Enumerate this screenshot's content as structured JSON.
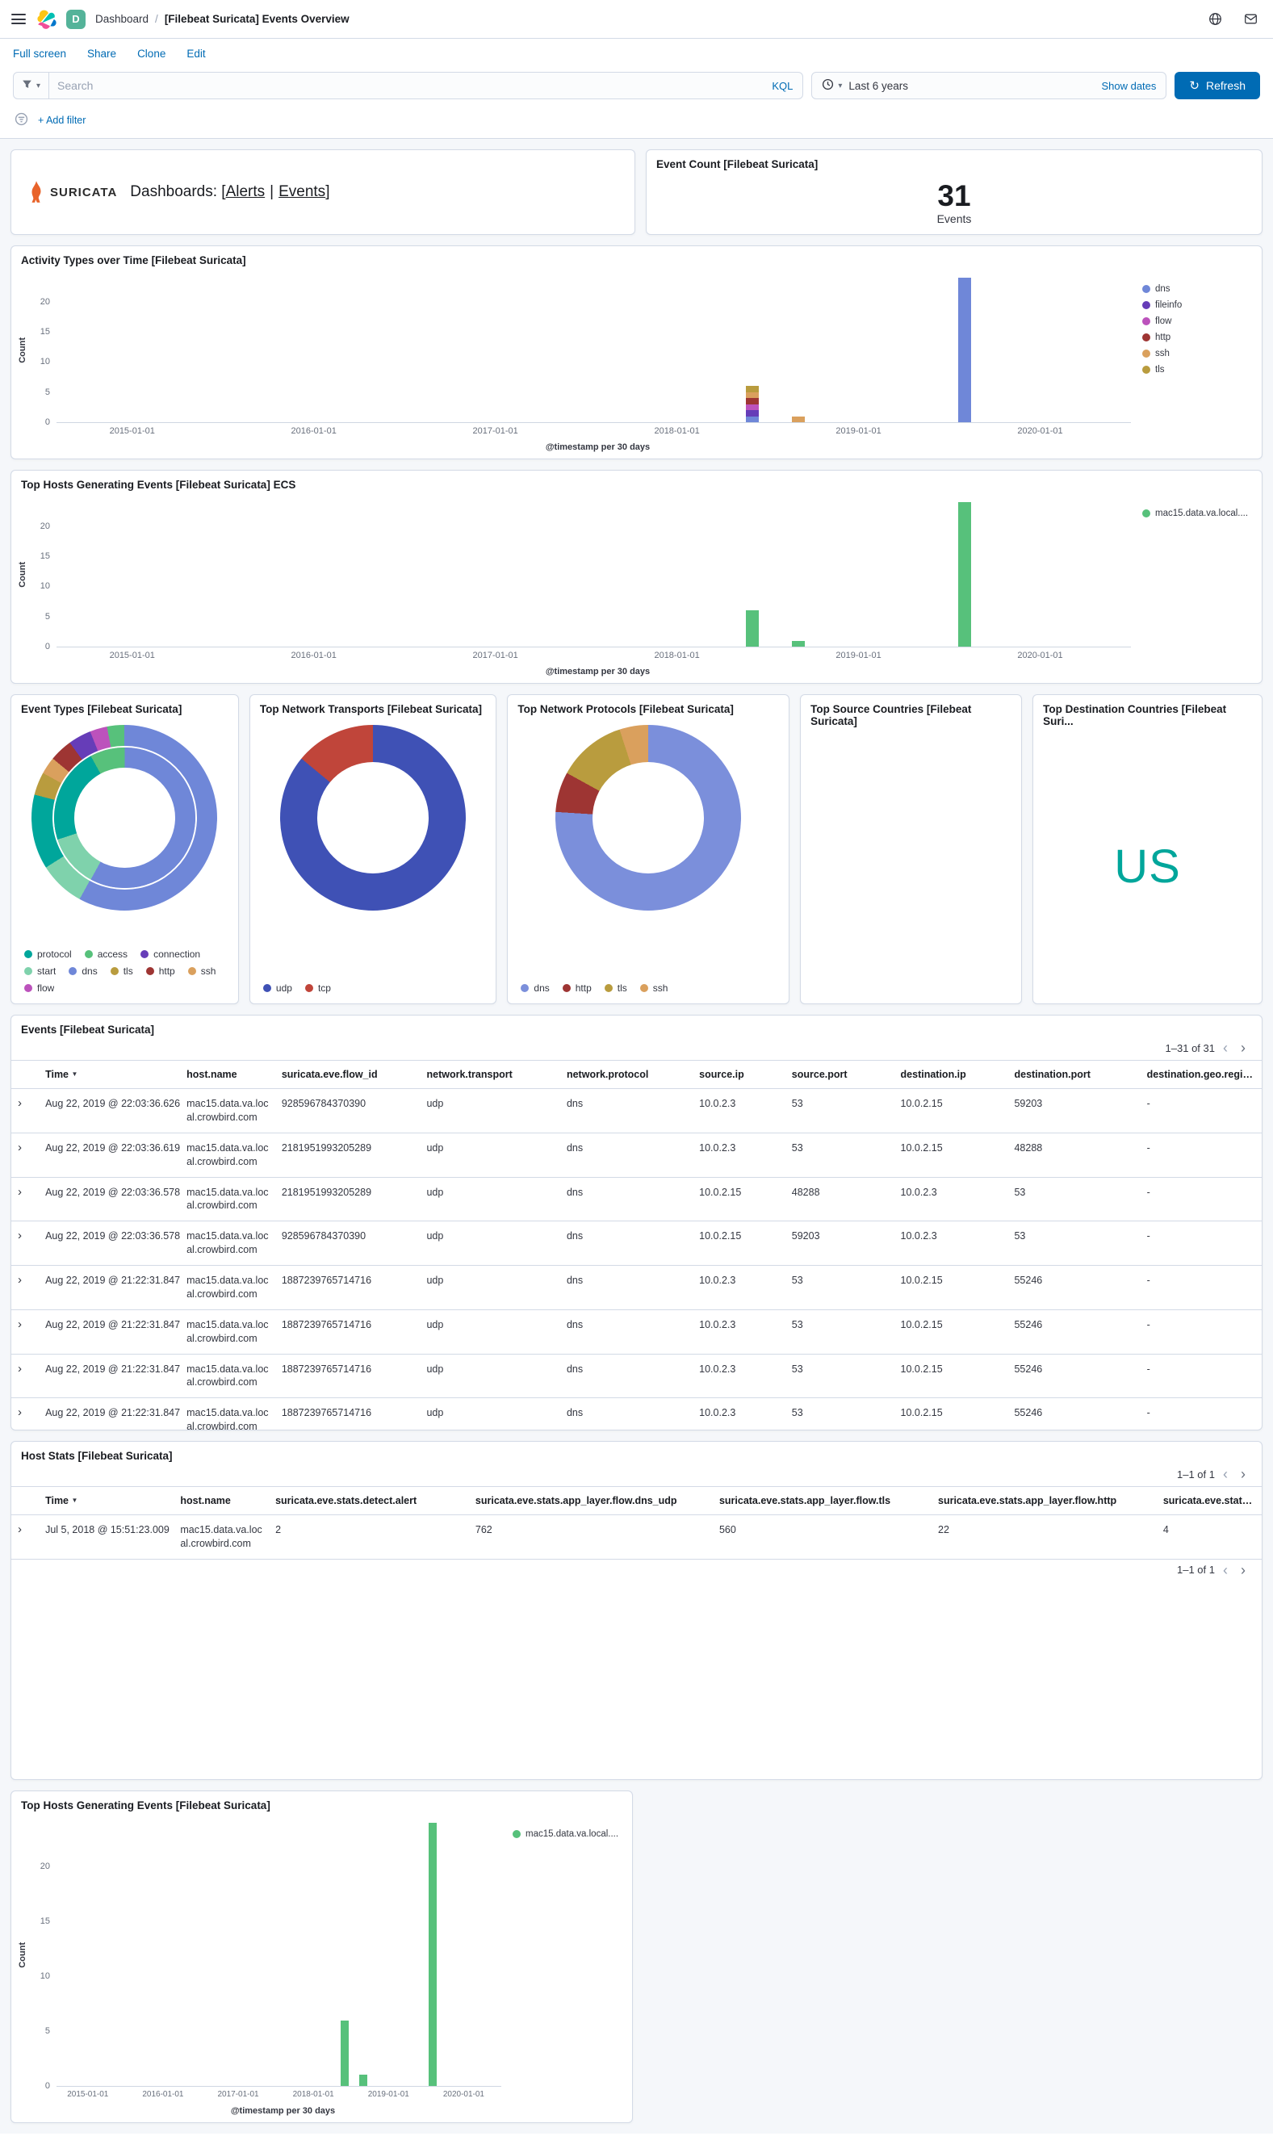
{
  "header": {
    "app_badge": "D",
    "breadcrumb_root": "Dashboard",
    "breadcrumb_sep": "/",
    "breadcrumb_page": "[Filebeat Suricata] Events Overview"
  },
  "toolbar": {
    "items": [
      "Full screen",
      "Share",
      "Clone",
      "Edit"
    ]
  },
  "querybar": {
    "search_placeholder": "Search",
    "kql": "KQL",
    "time_range": "Last 6 years",
    "show_dates": "Show dates",
    "refresh": "Refresh"
  },
  "filterbar": {
    "add_filter": "+ Add filter"
  },
  "panels": {
    "links": {
      "brand": "SURICATA",
      "prefix": "Dashboards: [",
      "link1": "Alerts",
      "divider": "|",
      "link2": "Events",
      "suffix": "]"
    },
    "event_count": {
      "title": "Event Count [Filebeat Suricata]",
      "value": "31",
      "label": "Events"
    },
    "source_countries": {
      "title": "Top Source Countries [Filebeat Suricata]"
    },
    "dest_countries": {
      "title": "Top Destination Countries [Filebeat Suri...",
      "tag": "US",
      "tag_color": "#00a69b"
    }
  },
  "charts": {
    "activity": {
      "type": "bar",
      "stacked": true,
      "title": "Activity Types over Time [Filebeat Suricata]",
      "xlabel": "@timestamp per 30 days",
      "ylabel": "Count",
      "x_domain": [
        "2014-08-01",
        "2020-07-01"
      ],
      "x_ticks": [
        "2015-01-01",
        "2016-01-01",
        "2017-01-01",
        "2018-01-01",
        "2019-01-01",
        "2020-01-01"
      ],
      "y_ticks": [
        0,
        5,
        10,
        15,
        20
      ],
      "ylim": [
        0,
        24
      ],
      "series": [
        {
          "name": "dns",
          "color": "#6f87d8",
          "points": [
            [
              "2018-06-01",
              1
            ],
            [
              "2019-08-01",
              24
            ]
          ]
        },
        {
          "name": "fileinfo",
          "color": "#663db8",
          "points": [
            [
              "2018-06-01",
              1
            ]
          ]
        },
        {
          "name": "flow",
          "color": "#bc52bc",
          "points": [
            [
              "2018-06-01",
              1
            ]
          ]
        },
        {
          "name": "http",
          "color": "#9e3533",
          "points": [
            [
              "2018-06-01",
              1
            ]
          ]
        },
        {
          "name": "ssh",
          "color": "#daa05d",
          "points": [
            [
              "2018-06-01",
              1
            ],
            [
              "2018-09-01",
              1
            ]
          ]
        },
        {
          "name": "tls",
          "color": "#b99c3e",
          "points": [
            [
              "2018-06-01",
              1
            ]
          ]
        }
      ]
    },
    "hosts_ecs": {
      "type": "bar",
      "title": "Top Hosts Generating Events [Filebeat Suricata] ECS",
      "xlabel": "@timestamp per 30 days",
      "ylabel": "Count",
      "x_domain": [
        "2014-08-01",
        "2020-07-01"
      ],
      "x_ticks": [
        "2015-01-01",
        "2016-01-01",
        "2017-01-01",
        "2018-01-01",
        "2019-01-01",
        "2020-01-01"
      ],
      "y_ticks": [
        0,
        5,
        10,
        15,
        20
      ],
      "ylim": [
        0,
        24
      ],
      "series": [
        {
          "name": "mac15.data.va.local....",
          "color": "#57c17b",
          "points": [
            [
              "2018-06-01",
              6
            ],
            [
              "2018-09-01",
              1
            ],
            [
              "2019-08-01",
              24
            ]
          ]
        }
      ]
    },
    "hosts_bottom": {
      "type": "bar",
      "title": "Top Hosts Generating Events [Filebeat Suricata]",
      "xlabel": "@timestamp per 30 days",
      "ylabel": "Count",
      "x_domain": [
        "2014-08-01",
        "2020-07-01"
      ],
      "x_ticks": [
        "2015-01-01",
        "2016-01-01",
        "2017-01-01",
        "2018-01-01",
        "2019-01-01",
        "2020-01-01"
      ],
      "y_ticks": [
        0,
        5,
        10,
        15,
        20
      ],
      "ylim": [
        0,
        24
      ],
      "series": [
        {
          "name": "mac15.data.va.local....",
          "color": "#57c17b",
          "points": [
            [
              "2018-06-01",
              6
            ],
            [
              "2018-09-01",
              1
            ],
            [
              "2019-08-01",
              24
            ]
          ]
        }
      ]
    },
    "event_types": {
      "type": "donut",
      "title": "Event Types [Filebeat Suricata]",
      "rings": [
        {
          "slices": [
            {
              "name": "dns",
              "color": "#6f87d8",
              "value": 58
            },
            {
              "name": "start",
              "color": "#7fd2ac",
              "value": 8
            },
            {
              "name": "protocol",
              "color": "#00a69b",
              "value": 13
            },
            {
              "name": "tls",
              "color": "#b99c3e",
              "value": 4
            },
            {
              "name": "ssh",
              "color": "#daa05d",
              "value": 3
            },
            {
              "name": "http",
              "color": "#9e3533",
              "value": 4
            },
            {
              "name": "connection",
              "color": "#663db8",
              "value": 4
            },
            {
              "name": "flow",
              "color": "#bc52bc",
              "value": 3
            },
            {
              "name": "access",
              "color": "#57c17b",
              "value": 3
            }
          ]
        },
        {
          "slices": [
            {
              "name": "dns",
              "color": "#6f87d8",
              "value": 58
            },
            {
              "name": "start",
              "color": "#7fd2ac",
              "value": 12
            },
            {
              "name": "protocol",
              "color": "#00a69b",
              "value": 22
            },
            {
              "name": "access",
              "color": "#57c17b",
              "value": 8
            }
          ]
        }
      ],
      "legend": [
        {
          "name": "protocol",
          "color": "#00a69b"
        },
        {
          "name": "access",
          "color": "#57c17b"
        },
        {
          "name": "connection",
          "color": "#663db8"
        },
        {
          "name": "start",
          "color": "#7fd2ac"
        },
        {
          "name": "dns",
          "color": "#6f87d8"
        },
        {
          "name": "tls",
          "color": "#b99c3e"
        },
        {
          "name": "http",
          "color": "#9e3533"
        },
        {
          "name": "ssh",
          "color": "#daa05d"
        },
        {
          "name": "flow",
          "color": "#bc52bc"
        }
      ]
    },
    "transports": {
      "type": "donut",
      "title": "Top Network Transports [Filebeat Suricata]",
      "slices": [
        {
          "name": "udp",
          "color": "#3f51b5",
          "value": 86
        },
        {
          "name": "tcp",
          "color": "#c0453a",
          "value": 14
        }
      ],
      "legend": [
        {
          "name": "udp",
          "color": "#3f51b5"
        },
        {
          "name": "tcp",
          "color": "#c0453a"
        }
      ]
    },
    "protocols": {
      "type": "donut",
      "title": "Top Network Protocols [Filebeat Suricata]",
      "slices": [
        {
          "name": "dns",
          "color": "#7b8fdb",
          "value": 76
        },
        {
          "name": "http",
          "color": "#9e3533",
          "value": 7
        },
        {
          "name": "tls",
          "color": "#b99c3e",
          "value": 12
        },
        {
          "name": "ssh",
          "color": "#daa05d",
          "value": 5
        }
      ],
      "legend": [
        {
          "name": "dns",
          "color": "#7b8fdb"
        },
        {
          "name": "http",
          "color": "#9e3533"
        },
        {
          "name": "tls",
          "color": "#b99c3e"
        },
        {
          "name": "ssh",
          "color": "#daa05d"
        }
      ]
    }
  },
  "tables": {
    "events": {
      "title": "Events [Filebeat Suricata]",
      "pagination": "1–31 of 31",
      "columns": [
        "Time",
        "host.name",
        "suricata.eve.flow_id",
        "network.transport",
        "network.protocol",
        "source.ip",
        "source.port",
        "destination.ip",
        "destination.port",
        "destination.geo.region_na..."
      ],
      "rows": [
        [
          "Aug 22, 2019 @ 22:03:36.626",
          "mac15.data.va.local.crowbird.com",
          "928596784370390",
          "udp",
          "dns",
          "10.0.2.3",
          "53",
          "10.0.2.15",
          "59203",
          "-"
        ],
        [
          "Aug 22, 2019 @ 22:03:36.619",
          "mac15.data.va.local.crowbird.com",
          "2181951993205289",
          "udp",
          "dns",
          "10.0.2.3",
          "53",
          "10.0.2.15",
          "48288",
          "-"
        ],
        [
          "Aug 22, 2019 @ 22:03:36.578",
          "mac15.data.va.local.crowbird.com",
          "2181951993205289",
          "udp",
          "dns",
          "10.0.2.15",
          "48288",
          "10.0.2.3",
          "53",
          "-"
        ],
        [
          "Aug 22, 2019 @ 22:03:36.578",
          "mac15.data.va.local.crowbird.com",
          "928596784370390",
          "udp",
          "dns",
          "10.0.2.15",
          "59203",
          "10.0.2.3",
          "53",
          "-"
        ],
        [
          "Aug 22, 2019 @ 21:22:31.847",
          "mac15.data.va.local.crowbird.com",
          "1887239765714716",
          "udp",
          "dns",
          "10.0.2.3",
          "53",
          "10.0.2.15",
          "55246",
          "-"
        ],
        [
          "Aug 22, 2019 @ 21:22:31.847",
          "mac15.data.va.local.crowbird.com",
          "1887239765714716",
          "udp",
          "dns",
          "10.0.2.3",
          "53",
          "10.0.2.15",
          "55246",
          "-"
        ],
        [
          "Aug 22, 2019 @ 21:22:31.847",
          "mac15.data.va.local.crowbird.com",
          "1887239765714716",
          "udp",
          "dns",
          "10.0.2.3",
          "53",
          "10.0.2.15",
          "55246",
          "-"
        ],
        [
          "Aug 22, 2019 @ 21:22:31.847",
          "mac15.data.va.local.crowbird.com",
          "1887239765714716",
          "udp",
          "dns",
          "10.0.2.3",
          "53",
          "10.0.2.15",
          "55246",
          "-"
        ]
      ]
    },
    "host_stats": {
      "title": "Host Stats [Filebeat Suricata]",
      "pagination": "1–1 of 1",
      "columns": [
        "Time",
        "host.name",
        "suricata.eve.stats.detect.alert",
        "suricata.eve.stats.app_layer.flow.dns_udp",
        "suricata.eve.stats.app_layer.flow.tls",
        "suricata.eve.stats.app_layer.flow.http",
        "suricata.eve.stats.app_l..."
      ],
      "rows": [
        [
          "Jul 5, 2018 @ 15:51:23.009",
          "mac15.data.va.local.crowbird.com",
          "2",
          "762",
          "560",
          "22",
          "4"
        ]
      ]
    }
  }
}
